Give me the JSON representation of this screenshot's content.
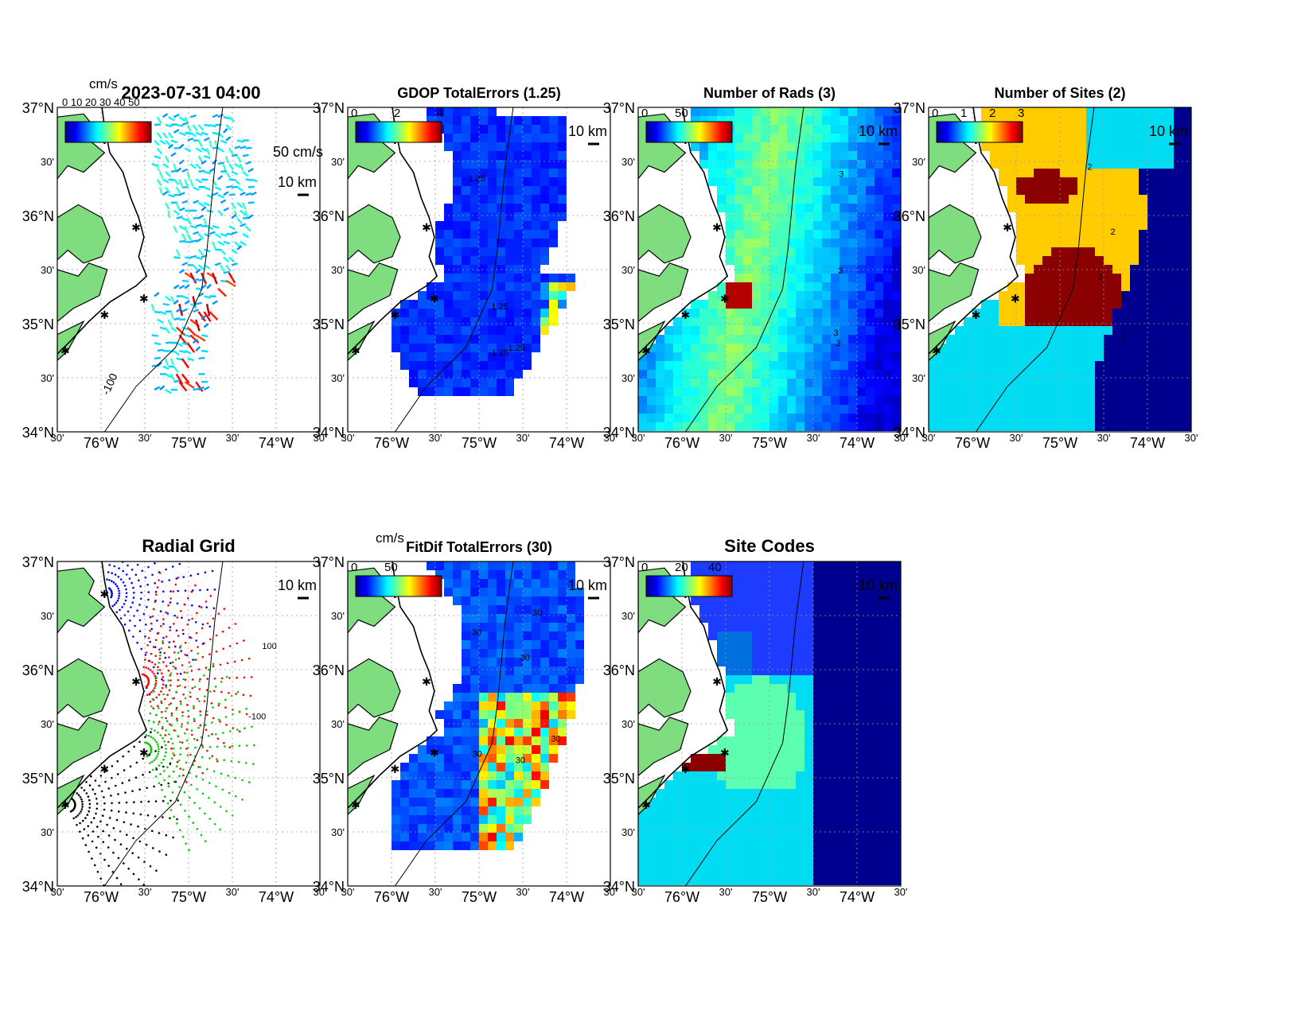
{
  "timestamp": "2023-07-31 04:00",
  "lat_labels": [
    "37°N",
    "30'",
    "36°N",
    "30'",
    "35°N",
    "30'",
    "34°N"
  ],
  "lon_labels": [
    "30'",
    "76°W",
    "30'",
    "75°W",
    "30'",
    "74°W",
    "30'"
  ],
  "scale_label": "10 km",
  "contour_label": "-100",
  "colors": {
    "land": "#7fdd7f",
    "deep_blue": "#00008f",
    "mid_blue": "#1e3cff",
    "cyan": "#00dcf2",
    "yellow": "#ffcc00",
    "dark_red": "#8b0000",
    "site_marker": "#ff0000"
  },
  "panels": [
    {
      "id": "total-currents",
      "title": "",
      "colorbar_unit": "cm/s",
      "colorbar_ticks": [],
      "vector_scale_label": "50 cm/s",
      "overlapped_text": "0 10 20 30 40 50",
      "kind": "vectors"
    },
    {
      "id": "gdop-total-errors",
      "title": "GDOP TotalErrors (1.25)",
      "colorbar_unit": "",
      "colorbar_ticks": [
        "0",
        "2",
        "4"
      ],
      "contour_labels": [
        "1.25",
        "1.25",
        "1.25",
        "1.25"
      ],
      "kind": "field-gdop"
    },
    {
      "id": "number-of-rads",
      "title": "Number of Rads (3)",
      "colorbar_unit": "",
      "colorbar_ticks": [
        "0",
        "50"
      ],
      "contour_labels": [
        "3",
        "3",
        "3",
        "3"
      ],
      "kind": "field-rads"
    },
    {
      "id": "number-of-sites",
      "title": "Number of Sites (2)",
      "colorbar_unit": "",
      "colorbar_ticks": [
        "0",
        "1",
        "2",
        "3"
      ],
      "contour_labels": [
        "2",
        "2",
        "2",
        "2",
        "2"
      ],
      "kind": "field-sites"
    },
    {
      "id": "radial-grid",
      "title": "Radial Grid",
      "colorbar_unit": "",
      "colorbar_ticks": [],
      "contour_labels": [
        "100",
        "-100"
      ],
      "kind": "radial-grid"
    },
    {
      "id": "fitdif-total-errors",
      "title": "FitDif TotalErrors (30)",
      "colorbar_unit": "cm/s",
      "colorbar_ticks": [
        "0",
        "50"
      ],
      "contour_labels": [
        "30",
        "30",
        "30",
        "30",
        "30",
        "30"
      ],
      "kind": "field-fitdif"
    },
    {
      "id": "site-codes",
      "title": "Site Codes",
      "colorbar_unit": "",
      "colorbar_ticks": [
        "0",
        "20",
        "40"
      ],
      "kind": "field-codes"
    }
  ]
}
